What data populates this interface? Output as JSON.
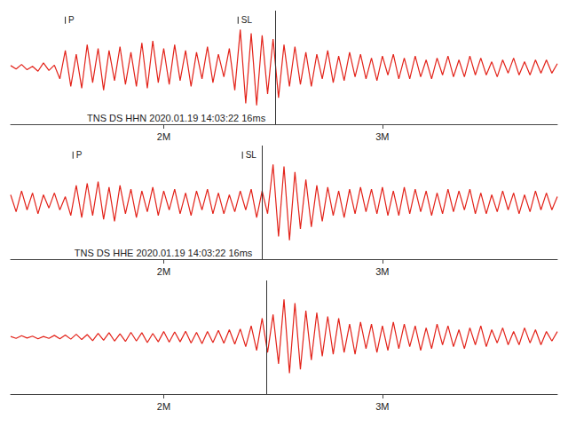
{
  "chart_data": [
    {
      "type": "line",
      "title": "TNS DS HHN 2020.01.19 14:03:22 16ms",
      "color": "#e32219",
      "x": [
        1.3,
        1.325,
        1.35,
        1.375,
        1.4,
        1.425,
        1.45,
        1.475,
        1.5,
        1.525,
        1.55,
        1.575,
        1.6,
        1.625,
        1.65,
        1.675,
        1.7,
        1.725,
        1.75,
        1.775,
        1.8,
        1.825,
        1.85,
        1.875,
        1.9,
        1.925,
        1.95,
        1.975,
        2,
        2.025,
        2.05,
        2.075,
        2.1,
        2.125,
        2.15,
        2.175,
        2.2,
        2.225,
        2.25,
        2.275,
        2.3,
        2.325,
        2.35,
        2.375,
        2.4,
        2.425,
        2.45,
        2.475,
        2.5,
        2.525,
        2.55,
        2.575,
        2.6,
        2.625,
        2.65,
        2.675,
        2.7,
        2.725,
        2.75,
        2.775,
        2.8,
        2.825,
        2.85,
        2.875,
        2.9,
        2.925,
        2.95,
        2.975,
        3,
        3.025,
        3.05,
        3.075,
        3.1,
        3.125,
        3.15,
        3.175,
        3.2,
        3.225,
        3.25,
        3.275,
        3.3,
        3.325,
        3.35,
        3.375,
        3.4,
        3.425,
        3.45,
        3.475,
        3.5,
        3.525,
        3.55,
        3.575,
        3.6,
        3.625,
        3.65,
        3.675,
        3.7,
        3.725,
        3.75,
        3.775,
        3.8
      ],
      "values": [
        0.05,
        -0.04,
        0.08,
        -0.06,
        0.03,
        -0.1,
        0.12,
        -0.08,
        0.06,
        -0.3,
        0.45,
        -0.5,
        0.35,
        -0.55,
        0.6,
        -0.4,
        0.5,
        -0.6,
        0.45,
        -0.35,
        0.55,
        -0.45,
        0.4,
        -0.5,
        0.65,
        -0.55,
        0.7,
        -0.4,
        0.5,
        -0.45,
        0.6,
        -0.35,
        0.45,
        -0.5,
        0.4,
        -0.3,
        0.55,
        -0.4,
        0.35,
        -0.25,
        0.5,
        -0.6,
        1.0,
        -0.95,
        0.9,
        -1.0,
        0.85,
        -0.7,
        0.75,
        -0.8,
        0.6,
        -0.5,
        0.55,
        -0.45,
        0.4,
        -0.5,
        0.35,
        -0.3,
        0.45,
        -0.4,
        0.3,
        -0.35,
        0.4,
        -0.25,
        0.35,
        -0.3,
        0.25,
        -0.35,
        0.3,
        -0.2,
        0.35,
        -0.3,
        0.25,
        -0.3,
        0.3,
        -0.25,
        0.2,
        -0.3,
        0.25,
        -0.2,
        0.3,
        -0.25,
        0.2,
        -0.25,
        0.3,
        -0.2,
        0.25,
        -0.2,
        0.15,
        -0.25,
        0.2,
        -0.15,
        0.25,
        -0.2,
        0.15,
        -0.2,
        0.2,
        -0.15,
        0.2,
        -0.15,
        0.1
      ],
      "xlim": [
        1.3,
        3.8
      ],
      "xticks": [
        {
          "value": 2,
          "label": "2M"
        },
        {
          "value": 3,
          "label": "3M"
        }
      ],
      "ylim": [
        -1.5,
        1.5
      ],
      "tick_labels": "x",
      "grid": false,
      "cursor": 2.51,
      "picks": [
        {
          "label": "P",
          "x": 1.55
        },
        {
          "label": "SL",
          "x": 2.34
        }
      ]
    },
    {
      "type": "line",
      "title": "TNS DS HHE 2020.01.19 14:03:22 16ms",
      "color": "#e32219",
      "x": [
        1.3,
        1.325,
        1.35,
        1.375,
        1.4,
        1.425,
        1.45,
        1.475,
        1.5,
        1.525,
        1.55,
        1.575,
        1.6,
        1.625,
        1.65,
        1.675,
        1.7,
        1.725,
        1.75,
        1.775,
        1.8,
        1.825,
        1.85,
        1.875,
        1.9,
        1.925,
        1.95,
        1.975,
        2,
        2.025,
        2.05,
        2.075,
        2.1,
        2.125,
        2.15,
        2.175,
        2.2,
        2.225,
        2.25,
        2.275,
        2.3,
        2.325,
        2.35,
        2.375,
        2.4,
        2.425,
        2.45,
        2.475,
        2.5,
        2.525,
        2.55,
        2.575,
        2.6,
        2.625,
        2.65,
        2.675,
        2.7,
        2.725,
        2.75,
        2.775,
        2.8,
        2.825,
        2.85,
        2.875,
        2.9,
        2.925,
        2.95,
        2.975,
        3,
        3.025,
        3.05,
        3.075,
        3.1,
        3.125,
        3.15,
        3.175,
        3.2,
        3.225,
        3.25,
        3.275,
        3.3,
        3.325,
        3.35,
        3.375,
        3.4,
        3.425,
        3.45,
        3.475,
        3.5,
        3.525,
        3.55,
        3.575,
        3.6,
        3.625,
        3.65,
        3.675,
        3.7,
        3.725,
        3.75,
        3.775,
        3.8
      ],
      "values": [
        0.2,
        -0.25,
        0.3,
        -0.2,
        0.25,
        -0.3,
        0.2,
        -0.15,
        0.25,
        -0.2,
        0.15,
        -0.35,
        0.45,
        -0.4,
        0.5,
        -0.35,
        0.55,
        -0.45,
        0.4,
        -0.5,
        0.45,
        -0.3,
        0.35,
        -0.4,
        0.3,
        -0.25,
        0.4,
        -0.35,
        0.3,
        -0.2,
        0.35,
        -0.3,
        0.25,
        -0.35,
        0.3,
        -0.2,
        0.35,
        -0.3,
        0.25,
        -0.3,
        0.2,
        -0.25,
        0.3,
        -0.2,
        0.35,
        -0.4,
        0.3,
        -0.3,
        1.0,
        -0.9,
        0.95,
        -1.0,
        0.8,
        -0.7,
        0.6,
        -0.65,
        0.45,
        -0.5,
        0.4,
        -0.35,
        0.3,
        -0.4,
        0.35,
        -0.3,
        0.4,
        -0.25,
        0.35,
        -0.3,
        0.4,
        -0.35,
        0.3,
        -0.35,
        0.4,
        -0.3,
        0.35,
        -0.25,
        0.3,
        -0.35,
        0.25,
        -0.3,
        0.35,
        -0.25,
        0.3,
        -0.2,
        0.35,
        -0.3,
        0.25,
        -0.3,
        0.2,
        -0.25,
        0.3,
        -0.2,
        0.25,
        -0.3,
        0.2,
        -0.25,
        0.3,
        -0.2,
        0.25,
        -0.2,
        0.15
      ],
      "xlim": [
        1.3,
        3.8
      ],
      "xticks": [
        {
          "value": 2,
          "label": "2M"
        },
        {
          "value": 3,
          "label": "3M"
        }
      ],
      "ylim": [
        -1.5,
        1.5
      ],
      "tick_labels": "x",
      "grid": false,
      "cursor": 2.45,
      "picks": [
        {
          "label": "P",
          "x": 1.585
        },
        {
          "label": "SL",
          "x": 2.36
        }
      ]
    },
    {
      "type": "line",
      "color": "#e32219",
      "x": [
        1.3,
        1.325,
        1.35,
        1.375,
        1.4,
        1.425,
        1.45,
        1.475,
        1.5,
        1.525,
        1.55,
        1.575,
        1.6,
        1.625,
        1.65,
        1.675,
        1.7,
        1.725,
        1.75,
        1.775,
        1.8,
        1.825,
        1.85,
        1.875,
        1.9,
        1.925,
        1.95,
        1.975,
        2,
        2.025,
        2.05,
        2.075,
        2.1,
        2.125,
        2.15,
        2.175,
        2.2,
        2.225,
        2.25,
        2.275,
        2.3,
        2.325,
        2.35,
        2.375,
        2.4,
        2.425,
        2.45,
        2.475,
        2.5,
        2.525,
        2.55,
        2.575,
        2.6,
        2.625,
        2.65,
        2.675,
        2.7,
        2.725,
        2.75,
        2.775,
        2.8,
        2.825,
        2.85,
        2.875,
        2.9,
        2.925,
        2.95,
        2.975,
        3,
        3.025,
        3.05,
        3.075,
        3.1,
        3.125,
        3.15,
        3.175,
        3.2,
        3.225,
        3.25,
        3.275,
        3.3,
        3.325,
        3.35,
        3.375,
        3.4,
        3.425,
        3.45,
        3.475,
        3.5,
        3.525,
        3.55,
        3.575,
        3.6,
        3.625,
        3.65,
        3.675,
        3.7,
        3.725,
        3.75,
        3.775,
        3.8
      ],
      "values": [
        0.02,
        -0.03,
        0.04,
        -0.02,
        0.03,
        -0.04,
        0.02,
        -0.03,
        0.05,
        -0.04,
        0.06,
        -0.05,
        0.08,
        -0.06,
        0.07,
        -0.09,
        0.1,
        -0.08,
        0.12,
        -0.1,
        0.09,
        -0.11,
        0.13,
        -0.1,
        0.12,
        -0.14,
        0.1,
        -0.12,
        0.15,
        -0.13,
        0.14,
        -0.12,
        0.16,
        -0.15,
        0.13,
        -0.17,
        0.15,
        -0.14,
        0.18,
        -0.16,
        0.2,
        -0.18,
        0.22,
        -0.25,
        0.3,
        -0.35,
        0.5,
        -0.4,
        0.6,
        -0.7,
        1.0,
        -0.95,
        0.9,
        -0.85,
        0.7,
        -0.6,
        0.65,
        -0.5,
        0.55,
        -0.45,
        0.5,
        -0.4,
        0.35,
        -0.45,
        0.4,
        -0.3,
        0.35,
        -0.4,
        0.3,
        -0.35,
        0.4,
        -0.3,
        0.35,
        -0.25,
        0.3,
        -0.35,
        0.25,
        -0.3,
        0.35,
        -0.2,
        0.3,
        -0.25,
        0.2,
        -0.3,
        0.25,
        -0.2,
        0.3,
        -0.25,
        0.2,
        -0.15,
        0.25,
        -0.2,
        0.15,
        -0.2,
        0.25,
        -0.15,
        0.2,
        -0.2,
        0.15,
        -0.1,
        0.15
      ],
      "xlim": [
        1.3,
        3.8
      ],
      "xticks": [
        {
          "value": 2,
          "label": "2M"
        },
        {
          "value": 3,
          "label": "3M"
        }
      ],
      "ylim": [
        -1.5,
        1.5
      ],
      "tick_labels": "x",
      "grid": false,
      "cursor": 2.47
    }
  ]
}
